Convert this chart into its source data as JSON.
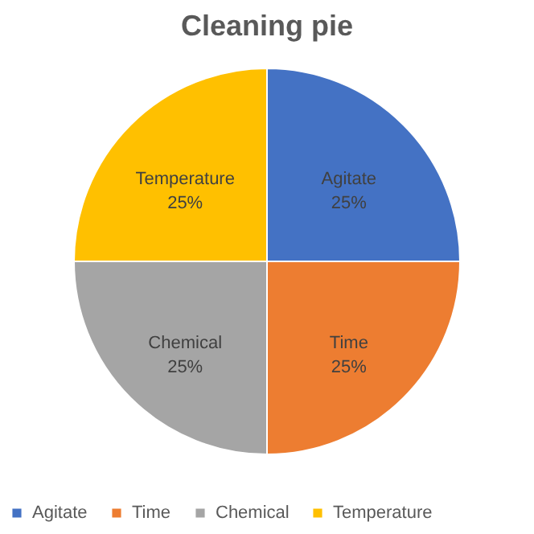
{
  "chart_data": {
    "type": "pie",
    "title": "Cleaning pie",
    "categories": [
      "Agitate",
      "Time",
      "Chemical",
      "Temperature"
    ],
    "values": [
      25,
      25,
      25,
      25
    ],
    "colors": [
      "#4472c4",
      "#ed7d31",
      "#a5a5a5",
      "#ffc000"
    ],
    "value_labels": [
      "25%",
      "25%",
      "25%",
      "25%"
    ],
    "legend": "bottom"
  }
}
